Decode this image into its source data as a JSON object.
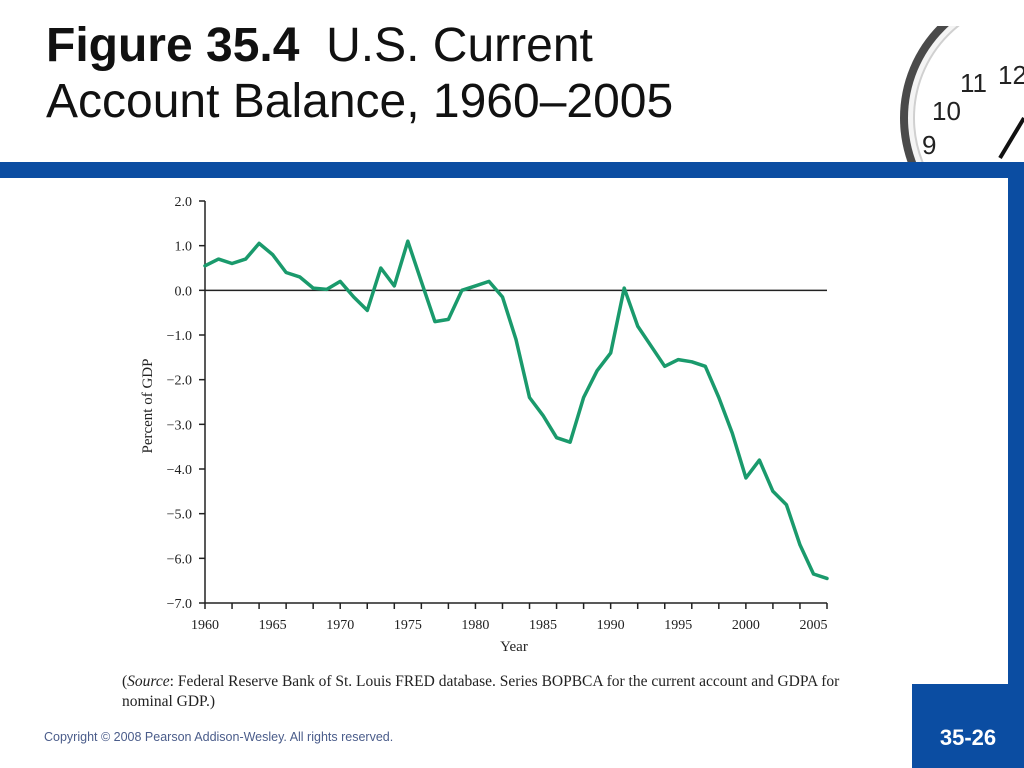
{
  "slide": {
    "title_figure": "Figure 35.4",
    "title_line1": "U.S. Current",
    "title_line2": "Account Balance, 1960–2005",
    "source_label": "Source",
    "source_text": ": Federal Reserve Bank of St. Louis FRED database. Series BOPBCA for the current account and GDPA for nominal GDP.)",
    "copyright": "Copyright © 2008 Pearson Addison-Wesley. All rights reserved.",
    "page_number": "35-26",
    "accent_color": "#0b4da2",
    "clock_numerals": [
      "12",
      "10",
      "11",
      "9"
    ]
  },
  "chart_data": {
    "type": "line",
    "title": "",
    "xlabel": "Year",
    "ylabel": "Percent of GDP",
    "xlim": [
      1960,
      2006
    ],
    "ylim": [
      -7.0,
      2.0
    ],
    "yticks": [
      2.0,
      1.0,
      0.0,
      -1.0,
      -2.0,
      -3.0,
      -4.0,
      -5.0,
      -6.0,
      -7.0
    ],
    "ytick_labels": [
      "2.0",
      "1.0",
      "0.0",
      "−1.0",
      "−2.0",
      "−3.0",
      "−4.0",
      "−5.0",
      "−6.0",
      "−7.0"
    ],
    "xticks": [
      1960,
      1965,
      1970,
      1975,
      1980,
      1985,
      1990,
      1995,
      2000,
      2005
    ],
    "xtick_labels": [
      "1960",
      "1965",
      "1970",
      "1975",
      "1980",
      "1985",
      "1990",
      "1995",
      "2000",
      "2005"
    ],
    "zero_line": true,
    "grid": false,
    "line_color": "#1a9a6c",
    "series": [
      {
        "x": [
          1960,
          1961,
          1962,
          1963,
          1964,
          1965,
          1966,
          1967,
          1968,
          1969,
          1970,
          1971,
          1972,
          1973,
          1974,
          1975,
          1976,
          1977,
          1978,
          1979,
          1980,
          1981,
          1982,
          1983,
          1984,
          1985,
          1986,
          1987,
          1988,
          1989,
          1990,
          1991,
          1992,
          1993,
          1994,
          1995,
          1996,
          1997,
          1998,
          1999,
          2000,
          2001,
          2002,
          2003,
          2004,
          2005,
          2006
        ],
        "values": [
          0.55,
          0.7,
          0.6,
          0.7,
          1.05,
          0.8,
          0.4,
          0.3,
          0.05,
          0.02,
          0.2,
          -0.15,
          -0.45,
          0.5,
          0.1,
          1.1,
          0.2,
          -0.7,
          -0.65,
          0.0,
          0.1,
          0.2,
          -0.15,
          -1.1,
          -2.4,
          -2.8,
          -3.3,
          -3.4,
          -2.4,
          -1.8,
          -1.4,
          0.05,
          -0.8,
          -1.25,
          -1.7,
          -1.55,
          -1.6,
          -1.7,
          -2.4,
          -3.2,
          -4.2,
          -3.8,
          -4.5,
          -4.8,
          -5.7,
          -6.35,
          -6.45
        ]
      }
    ]
  }
}
